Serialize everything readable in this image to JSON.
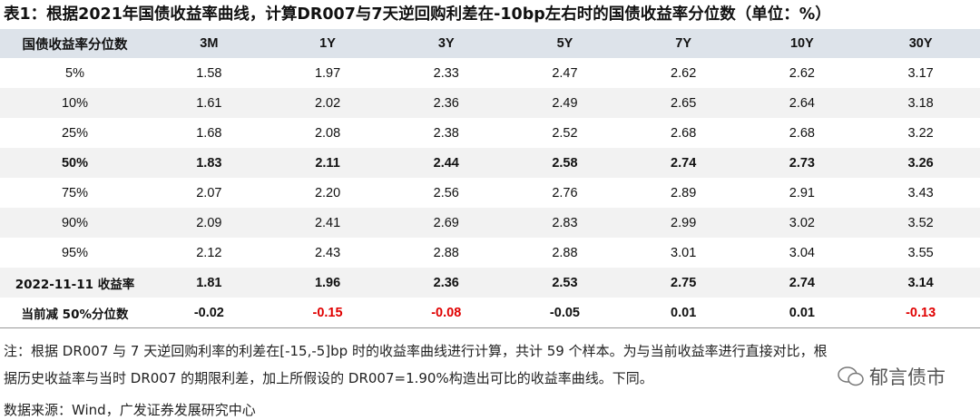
{
  "title": "表1：根据2021年国债收益率曲线，计算DR007与7天逆回购利差在-10bp左右时的国债收益率分位数（单位：%）",
  "table": {
    "header": [
      "国债收益率分位数",
      "3M",
      "1Y",
      "3Y",
      "5Y",
      "7Y",
      "10Y",
      "30Y"
    ],
    "rows": [
      [
        "5%",
        "1.58",
        "1.97",
        "2.33",
        "2.47",
        "2.62",
        "2.62",
        "3.17"
      ],
      [
        "10%",
        "1.61",
        "2.02",
        "2.36",
        "2.49",
        "2.65",
        "2.64",
        "3.18"
      ],
      [
        "25%",
        "1.68",
        "2.08",
        "2.38",
        "2.52",
        "2.68",
        "2.68",
        "3.22"
      ],
      [
        "50%",
        "1.83",
        "2.11",
        "2.44",
        "2.58",
        "2.74",
        "2.73",
        "3.26"
      ],
      [
        "75%",
        "2.07",
        "2.20",
        "2.56",
        "2.76",
        "2.89",
        "2.91",
        "3.43"
      ],
      [
        "90%",
        "2.09",
        "2.41",
        "2.69",
        "2.83",
        "2.99",
        "3.02",
        "3.52"
      ],
      [
        "95%",
        "2.12",
        "2.43",
        "2.88",
        "2.88",
        "3.01",
        "3.04",
        "3.55"
      ],
      [
        "2022-11-11 收益率",
        "1.81",
        "1.96",
        "2.36",
        "2.53",
        "2.75",
        "2.74",
        "3.14"
      ],
      [
        "当前减 50%分位数",
        "-0.02",
        "-0.15",
        "-0.08",
        "-0.05",
        "0.01",
        "0.01",
        "-0.13"
      ]
    ]
  },
  "notes": [
    "注：根据 DR007 与 7 天逆回购利率的利差在[-15,-5]bp 时的收益率曲线进行计算，共计 59 个样本。为与当前收益率进行直接对比，根",
    "据历史收益率与当时 DR007 的期限利差，加上所假设的 DR007=1.90%构造出可比的收益率曲线。下同。"
  ],
  "source": "数据来源：Wind，广发证券发展研究中心",
  "watermark": "郁言债市"
}
